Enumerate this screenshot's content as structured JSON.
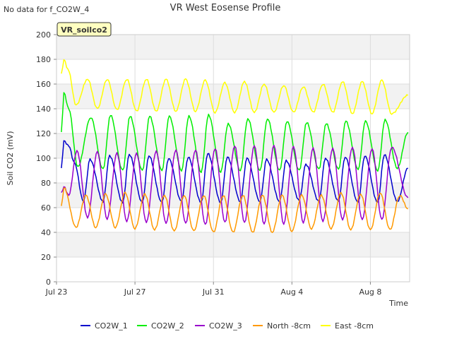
{
  "header": {
    "no_data_note": "No data for f_CO2W_4"
  },
  "chart_data": {
    "type": "line",
    "title": "VR West Eosense Profile",
    "xlabel": "Time",
    "ylabel": "Soil CO2 (mV)",
    "ylim": [
      0,
      200
    ],
    "yticks": [
      0,
      20,
      40,
      60,
      80,
      100,
      120,
      140,
      160,
      180,
      200
    ],
    "x_range": [
      "2024-07-23",
      "2024-08-10"
    ],
    "xticks": [
      {
        "date": "2024-07-23",
        "label": "Jul 23"
      },
      {
        "date": "2024-07-27",
        "label": "Jul 27"
      },
      {
        "date": "2024-07-31",
        "label": "Jul 31"
      },
      {
        "date": "2024-08-04",
        "label": "Aug 4"
      },
      {
        "date": "2024-08-08",
        "label": "Aug 8"
      }
    ],
    "grid": true,
    "legend_position": "bottom",
    "site_label": "VR_soilco2",
    "site_label_colors": {
      "bg": "#ffffc0",
      "text": "#8b0000",
      "border": "#333333"
    },
    "series": [
      {
        "name": "CO2W_1",
        "color": "#0000cc",
        "points": [
          [
            "2024-07-23 06:00",
            92
          ],
          [
            "2024-07-23 09:00",
            114
          ],
          [
            "2024-07-23 15:00",
            110
          ],
          [
            "2024-07-23 22:00",
            96
          ],
          [
            "2024-07-24 09:00",
            65
          ],
          [
            "2024-07-24 17:00",
            99
          ],
          [
            "2024-07-25 09:00",
            65
          ],
          [
            "2024-07-25 17:00",
            102
          ],
          [
            "2024-07-26 09:00",
            64
          ],
          [
            "2024-07-26 17:00",
            103
          ],
          [
            "2024-07-27 09:00",
            64
          ],
          [
            "2024-07-27 17:00",
            102
          ],
          [
            "2024-07-28 09:00",
            64
          ],
          [
            "2024-07-28 17:00",
            100
          ],
          [
            "2024-07-29 09:00",
            65
          ],
          [
            "2024-07-29 17:00",
            101
          ],
          [
            "2024-07-30 09:00",
            64
          ],
          [
            "2024-07-30 17:00",
            104
          ],
          [
            "2024-07-31 09:00",
            64
          ],
          [
            "2024-07-31 17:00",
            101
          ],
          [
            "2024-08-01 09:00",
            65
          ],
          [
            "2024-08-01 17:00",
            100
          ],
          [
            "2024-08-02 09:00",
            65
          ],
          [
            "2024-08-02 17:00",
            99
          ],
          [
            "2024-08-03 09:00",
            65
          ],
          [
            "2024-08-03 17:00",
            98
          ],
          [
            "2024-08-04 09:00",
            66
          ],
          [
            "2024-08-04 17:00",
            95
          ],
          [
            "2024-08-05 09:00",
            65
          ],
          [
            "2024-08-05 17:00",
            100
          ],
          [
            "2024-08-06 09:00",
            65
          ],
          [
            "2024-08-06 17:00",
            101
          ],
          [
            "2024-08-07 09:00",
            64
          ],
          [
            "2024-08-07 17:00",
            102
          ],
          [
            "2024-08-08 09:00",
            64
          ],
          [
            "2024-08-08 17:00",
            103
          ],
          [
            "2024-08-09 09:00",
            65
          ],
          [
            "2024-08-09 22:00",
            92
          ]
        ]
      },
      {
        "name": "CO2W_2",
        "color": "#00ee00",
        "points": [
          [
            "2024-07-23 06:00",
            121
          ],
          [
            "2024-07-23 09:00",
            153
          ],
          [
            "2024-07-23 15:00",
            140
          ],
          [
            "2024-07-24 02:00",
            93
          ],
          [
            "2024-07-24 18:00",
            133
          ],
          [
            "2024-07-25 09:00",
            91
          ],
          [
            "2024-07-25 18:00",
            135
          ],
          [
            "2024-07-26 09:00",
            90
          ],
          [
            "2024-07-26 18:00",
            134
          ],
          [
            "2024-07-27 09:00",
            90
          ],
          [
            "2024-07-27 18:00",
            134
          ],
          [
            "2024-07-28 09:00",
            90
          ],
          [
            "2024-07-28 18:00",
            134
          ],
          [
            "2024-07-29 09:00",
            90
          ],
          [
            "2024-07-29 18:00",
            134
          ],
          [
            "2024-07-30 09:00",
            89
          ],
          [
            "2024-07-30 18:00",
            135
          ],
          [
            "2024-07-31 09:00",
            89
          ],
          [
            "2024-07-31 18:00",
            128
          ],
          [
            "2024-08-01 09:00",
            90
          ],
          [
            "2024-08-01 18:00",
            132
          ],
          [
            "2024-08-02 09:00",
            90
          ],
          [
            "2024-08-02 18:00",
            132
          ],
          [
            "2024-08-03 09:00",
            90
          ],
          [
            "2024-08-03 18:00",
            130
          ],
          [
            "2024-08-04 09:00",
            90
          ],
          [
            "2024-08-04 18:00",
            129
          ],
          [
            "2024-08-05 09:00",
            91
          ],
          [
            "2024-08-05 18:00",
            128
          ],
          [
            "2024-08-06 09:00",
            91
          ],
          [
            "2024-08-06 18:00",
            130
          ],
          [
            "2024-08-07 09:00",
            91
          ],
          [
            "2024-08-07 18:00",
            130
          ],
          [
            "2024-08-08 09:00",
            90
          ],
          [
            "2024-08-08 18:00",
            131
          ],
          [
            "2024-08-09 09:00",
            92
          ],
          [
            "2024-08-09 22:00",
            121
          ]
        ]
      },
      {
        "name": "CO2W_3",
        "color": "#9900cc",
        "points": [
          [
            "2024-07-23 06:00",
            72
          ],
          [
            "2024-07-23 09:00",
            77
          ],
          [
            "2024-07-23 15:00",
            70
          ],
          [
            "2024-07-24 01:00",
            106
          ],
          [
            "2024-07-24 14:00",
            52
          ],
          [
            "2024-07-25 02:00",
            105
          ],
          [
            "2024-07-25 14:00",
            51
          ],
          [
            "2024-07-26 02:00",
            104
          ],
          [
            "2024-07-26 14:00",
            49
          ],
          [
            "2024-07-27 02:00",
            104
          ],
          [
            "2024-07-27 14:00",
            48
          ],
          [
            "2024-07-28 02:00",
            106
          ],
          [
            "2024-07-28 14:00",
            47
          ],
          [
            "2024-07-29 02:00",
            107
          ],
          [
            "2024-07-29 14:00",
            47
          ],
          [
            "2024-07-30 02:00",
            107
          ],
          [
            "2024-07-30 14:00",
            46
          ],
          [
            "2024-07-31 02:00",
            108
          ],
          [
            "2024-07-31 14:00",
            48
          ],
          [
            "2024-08-01 02:00",
            110
          ],
          [
            "2024-08-01 14:00",
            48
          ],
          [
            "2024-08-02 02:00",
            110
          ],
          [
            "2024-08-02 14:00",
            47
          ],
          [
            "2024-08-03 02:00",
            110
          ],
          [
            "2024-08-03 14:00",
            47
          ],
          [
            "2024-08-04 02:00",
            109
          ],
          [
            "2024-08-04 14:00",
            48
          ],
          [
            "2024-08-05 02:00",
            108
          ],
          [
            "2024-08-05 14:00",
            49
          ],
          [
            "2024-08-06 02:00",
            108
          ],
          [
            "2024-08-06 14:00",
            50
          ],
          [
            "2024-08-07 02:00",
            109
          ],
          [
            "2024-08-07 14:00",
            50
          ],
          [
            "2024-08-08 02:00",
            108
          ],
          [
            "2024-08-08 14:00",
            50
          ],
          [
            "2024-08-09 02:00",
            109
          ],
          [
            "2024-08-09 22:00",
            68
          ]
        ]
      },
      {
        "name": "North -8cm",
        "color": "#ff9900",
        "points": [
          [
            "2024-07-23 06:00",
            61
          ],
          [
            "2024-07-23 09:00",
            76
          ],
          [
            "2024-07-24 00:00",
            44
          ],
          [
            "2024-07-24 12:00",
            70
          ],
          [
            "2024-07-25 00:00",
            44
          ],
          [
            "2024-07-25 12:00",
            71
          ],
          [
            "2024-07-26 00:00",
            44
          ],
          [
            "2024-07-26 12:00",
            72
          ],
          [
            "2024-07-27 00:00",
            43
          ],
          [
            "2024-07-27 12:00",
            71
          ],
          [
            "2024-07-28 00:00",
            42
          ],
          [
            "2024-07-28 12:00",
            70
          ],
          [
            "2024-07-29 00:00",
            41
          ],
          [
            "2024-07-29 12:00",
            70
          ],
          [
            "2024-07-30 00:00",
            41
          ],
          [
            "2024-07-30 12:00",
            70
          ],
          [
            "2024-07-31 00:00",
            40
          ],
          [
            "2024-07-31 12:00",
            70
          ],
          [
            "2024-08-01 00:00",
            40
          ],
          [
            "2024-08-01 12:00",
            70
          ],
          [
            "2024-08-02 00:00",
            40
          ],
          [
            "2024-08-02 12:00",
            70
          ],
          [
            "2024-08-03 00:00",
            40
          ],
          [
            "2024-08-03 12:00",
            70
          ],
          [
            "2024-08-04 00:00",
            41
          ],
          [
            "2024-08-04 12:00",
            70
          ],
          [
            "2024-08-05 00:00",
            43
          ],
          [
            "2024-08-05 12:00",
            70
          ],
          [
            "2024-08-06 00:00",
            43
          ],
          [
            "2024-08-06 12:00",
            72
          ],
          [
            "2024-08-07 00:00",
            42
          ],
          [
            "2024-08-07 12:00",
            71
          ],
          [
            "2024-08-08 00:00",
            42
          ],
          [
            "2024-08-08 12:00",
            72
          ],
          [
            "2024-08-09 00:00",
            42
          ],
          [
            "2024-08-09 12:00",
            70
          ],
          [
            "2024-08-09 22:00",
            59
          ]
        ]
      },
      {
        "name": "East -8cm",
        "color": "#ffff00",
        "points": [
          [
            "2024-07-23 06:00",
            168
          ],
          [
            "2024-07-23 09:00",
            180
          ],
          [
            "2024-07-23 14:00",
            172
          ],
          [
            "2024-07-24 00:00",
            143
          ],
          [
            "2024-07-24 14:00",
            164
          ],
          [
            "2024-07-25 02:00",
            140
          ],
          [
            "2024-07-25 14:00",
            164
          ],
          [
            "2024-07-26 02:00",
            139
          ],
          [
            "2024-07-26 14:00",
            164
          ],
          [
            "2024-07-27 02:00",
            138
          ],
          [
            "2024-07-27 14:00",
            164
          ],
          [
            "2024-07-28 02:00",
            138
          ],
          [
            "2024-07-28 14:00",
            164
          ],
          [
            "2024-07-29 02:00",
            138
          ],
          [
            "2024-07-29 14:00",
            164
          ],
          [
            "2024-07-30 02:00",
            138
          ],
          [
            "2024-07-30 14:00",
            163
          ],
          [
            "2024-07-31 02:00",
            137
          ],
          [
            "2024-07-31 14:00",
            161
          ],
          [
            "2024-08-01 02:00",
            137
          ],
          [
            "2024-08-01 14:00",
            162
          ],
          [
            "2024-08-02 02:00",
            137
          ],
          [
            "2024-08-02 14:00",
            160
          ],
          [
            "2024-08-03 02:00",
            137
          ],
          [
            "2024-08-03 14:00",
            159
          ],
          [
            "2024-08-04 02:00",
            137
          ],
          [
            "2024-08-04 14:00",
            158
          ],
          [
            "2024-08-05 02:00",
            137
          ],
          [
            "2024-08-05 14:00",
            160
          ],
          [
            "2024-08-06 02:00",
            137
          ],
          [
            "2024-08-06 14:00",
            162
          ],
          [
            "2024-08-07 02:00",
            136
          ],
          [
            "2024-08-07 14:00",
            162
          ],
          [
            "2024-08-08 02:00",
            136
          ],
          [
            "2024-08-08 14:00",
            163
          ],
          [
            "2024-08-09 02:00",
            136
          ],
          [
            "2024-08-09 22:00",
            151
          ]
        ]
      }
    ]
  }
}
